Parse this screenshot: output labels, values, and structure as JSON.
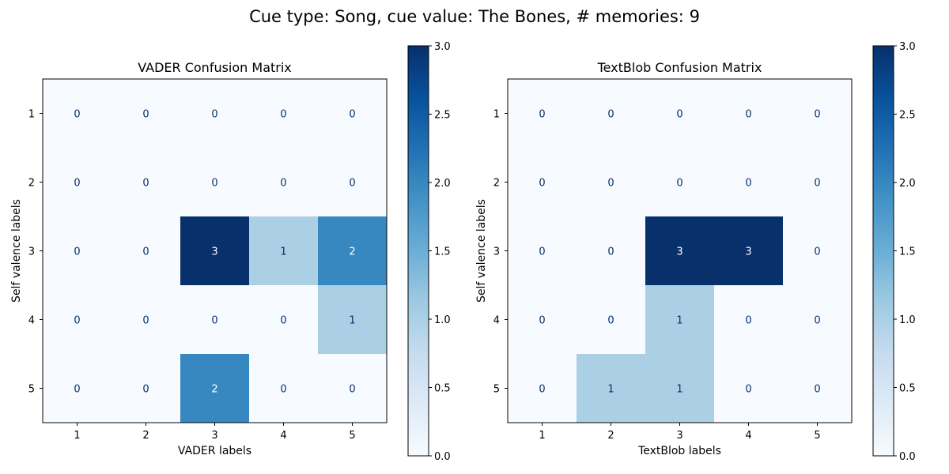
{
  "figure": {
    "suptitle": "Cue type: Song, cue value: The Bones, # memories: 9"
  },
  "chart_data": [
    {
      "type": "heatmap",
      "title": "VADER Confusion Matrix",
      "xlabel": "VADER labels",
      "ylabel": "Self valence labels",
      "x_categories": [
        "1",
        "2",
        "3",
        "4",
        "5"
      ],
      "y_categories": [
        "1",
        "2",
        "3",
        "4",
        "5"
      ],
      "values": [
        [
          0,
          0,
          0,
          0,
          0
        ],
        [
          0,
          0,
          0,
          0,
          0
        ],
        [
          0,
          0,
          3,
          1,
          2
        ],
        [
          0,
          0,
          0,
          0,
          1
        ],
        [
          0,
          0,
          2,
          0,
          0
        ]
      ],
      "colormap": "Blues",
      "colorbar": {
        "min": 0.0,
        "max": 3.0,
        "ticks": [
          "0.0",
          "0.5",
          "1.0",
          "1.5",
          "2.0",
          "2.5",
          "3.0"
        ]
      },
      "grid": false
    },
    {
      "type": "heatmap",
      "title": "TextBlob Confusion Matrix",
      "xlabel": "TextBlob labels",
      "ylabel": "Self valence labels",
      "x_categories": [
        "1",
        "2",
        "3",
        "4",
        "5"
      ],
      "y_categories": [
        "1",
        "2",
        "3",
        "4",
        "5"
      ],
      "values": [
        [
          0,
          0,
          0,
          0,
          0
        ],
        [
          0,
          0,
          0,
          0,
          0
        ],
        [
          0,
          0,
          3,
          3,
          0
        ],
        [
          0,
          0,
          1,
          0,
          0
        ],
        [
          0,
          1,
          1,
          0,
          0
        ]
      ],
      "colormap": "Blues",
      "colorbar": {
        "min": 0.0,
        "max": 3.0,
        "ticks": [
          "0.0",
          "0.5",
          "1.0",
          "1.5",
          "2.0",
          "2.5",
          "3.0"
        ]
      },
      "grid": false
    }
  ]
}
